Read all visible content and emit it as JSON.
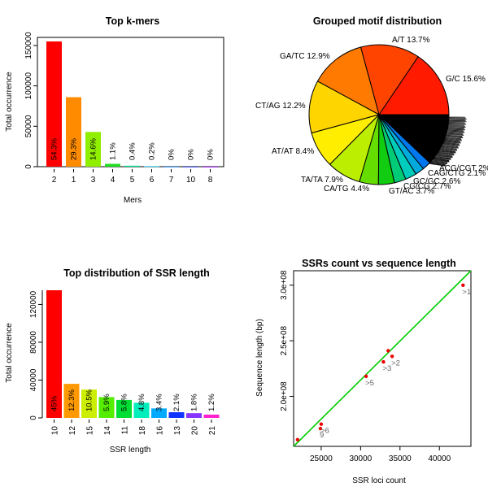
{
  "chart_data": [
    {
      "id": "kmers",
      "type": "bar",
      "title": "Top k-mers",
      "xlabel": "Mers",
      "ylabel": "Total occurrence",
      "categories": [
        "2",
        "1",
        "3",
        "4",
        "5",
        "6",
        "7",
        "10",
        "8"
      ],
      "values": [
        155000,
        86000,
        43000,
        3500,
        1200,
        600,
        50,
        20,
        10
      ],
      "labels": [
        "54.3%",
        "29.3%",
        "14.6%",
        "1.1%",
        "0.4%",
        "0.2%",
        "0%",
        "0%",
        "0%"
      ],
      "colors": [
        "#ff0000",
        "#ff8c00",
        "#90ee00",
        "#22dd22",
        "#00ee99",
        "#00ccee",
        "#1188ff",
        "#2233ff",
        "#9900ff"
      ],
      "yticks": [
        "0",
        "50000",
        "100000",
        "150000"
      ],
      "ylim": [
        0,
        160000
      ]
    },
    {
      "id": "motifs",
      "type": "pie",
      "title": "Grouped motif distribution",
      "slices": [
        {
          "label": "G/C 15.6%",
          "value": 15.6,
          "color": "#ff1a00"
        },
        {
          "label": "A/T 13.7%",
          "value": 13.7,
          "color": "#ff4400"
        },
        {
          "label": "GA/TC 12.9%",
          "value": 12.9,
          "color": "#ff7a00"
        },
        {
          "label": "CT/AG 12.2%",
          "value": 12.2,
          "color": "#ffd500"
        },
        {
          "label": "AT/AT 8.4%",
          "value": 8.4,
          "color": "#ffee00"
        },
        {
          "label": "TA/TA 7.9%",
          "value": 7.9,
          "color": "#bbee00"
        },
        {
          "label": "CA/TG 4.4%",
          "value": 4.4,
          "color": "#66dd00"
        },
        {
          "label": "GT/AC 3.7%",
          "value": 3.7,
          "color": "#11cc11"
        },
        {
          "label": "CG/CG 2.7%",
          "value": 2.7,
          "color": "#00cc77"
        },
        {
          "label": "GC/GC 2.6%",
          "value": 2.6,
          "color": "#00ccbb"
        },
        {
          "label": "CAG/CTG 2.1%",
          "value": 2.1,
          "color": "#00aadd"
        },
        {
          "label": "ACG/CGT 2%",
          "value": 2.0,
          "color": "#0077ee"
        },
        {
          "label": "other motifs",
          "value": 12.1,
          "color": "#000000"
        }
      ]
    },
    {
      "id": "ssr_length",
      "type": "bar",
      "title": "Top distribution of SSR length",
      "xlabel": "SSR length",
      "ylabel": "Total occurrence",
      "categories": [
        "10",
        "12",
        "15",
        "14",
        "11",
        "18",
        "16",
        "13",
        "20",
        "21"
      ],
      "values": [
        135000,
        36000,
        30000,
        22000,
        19000,
        16000,
        10000,
        6000,
        5000,
        3500
      ],
      "labels": [
        "45%",
        "12.3%",
        "10.5%",
        "5.9%",
        "5.8%",
        "4.8%",
        "3.4%",
        "2.1%",
        "1.8%",
        "1.2%"
      ],
      "colors": [
        "#ff0000",
        "#ff9900",
        "#ccee00",
        "#55ee00",
        "#00dd33",
        "#00eebb",
        "#00aaff",
        "#1133ff",
        "#8833ff",
        "#ff22cc"
      ],
      "yticks": [
        "0",
        "40000",
        "80000",
        "120000"
      ],
      "ylim": [
        0,
        135000
      ]
    },
    {
      "id": "ssr_vs_len",
      "type": "scatter",
      "title": "SSRs count vs sequence length",
      "xlabel": "SSR loci count",
      "ylabel": "Sequence length (bp)",
      "xticks": [
        25000,
        30000,
        35000,
        40000
      ],
      "xtick_labels": [
        "25000",
        "30000",
        "35000",
        "40000"
      ],
      "yticks": [
        200000000,
        250000000,
        300000000
      ],
      "ytick_labels": [
        "2.0e+08",
        "2.5e+08",
        "3.0e+08"
      ],
      "xlim": [
        21500,
        44000
      ],
      "ylim": [
        155000000,
        313000000
      ],
      "points": [
        {
          "x": 22000,
          "y": 161000000,
          "label": ""
        },
        {
          "x": 24900,
          "y": 171000000,
          "label": "9"
        },
        {
          "x": 25000,
          "y": 175000000,
          "label": ">6"
        },
        {
          "x": 30700,
          "y": 218000000,
          "label": ">5"
        },
        {
          "x": 32900,
          "y": 231000000,
          "label": ">3"
        },
        {
          "x": 33500,
          "y": 241000000,
          "label": ""
        },
        {
          "x": 34000,
          "y": 236000000,
          "label": ">2"
        },
        {
          "x": 43000,
          "y": 300000000,
          "label": ">1"
        }
      ],
      "fit": {
        "x1": 21500,
        "y1": 155000000,
        "x2": 44000,
        "y2": 313000000,
        "color": "#00cc00"
      },
      "point_color": "#ee0000"
    }
  ]
}
